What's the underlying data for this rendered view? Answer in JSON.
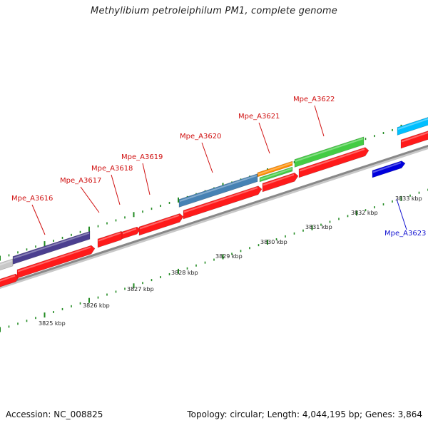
{
  "title": "Methylibium petroleiphilum PM1, complete genome",
  "footer": {
    "accession": "Accession: NC_008825",
    "summary": "Topology: circular; Length: 4,044,195 bp; Genes: 3,864"
  },
  "colors": {
    "background": "#ffffff",
    "backbone": "#888888",
    "cds": "#ff1a1a",
    "label_red": "#d01010",
    "label_blue": "#1010d0",
    "tick": "#228b22",
    "ruler_text": "#222222"
  },
  "ruler": {
    "labels": [
      "3825 kbp",
      "3826 kbp",
      "3827 kbp",
      "3828 kbp",
      "3829 kbp",
      "3830 kbp",
      "3831 kbp",
      "3832 kbp",
      "3833 kbp"
    ]
  },
  "gene_labels": [
    {
      "text": "Mpe_A3616",
      "strand": "forward"
    },
    {
      "text": "Mpe_A3617",
      "strand": "forward"
    },
    {
      "text": "Mpe_A3618",
      "strand": "forward"
    },
    {
      "text": "Mpe_A3619",
      "strand": "forward"
    },
    {
      "text": "Mpe_A3620",
      "strand": "forward"
    },
    {
      "text": "Mpe_A3621",
      "strand": "forward"
    },
    {
      "text": "Mpe_A3622",
      "strand": "forward"
    },
    {
      "text": "Mpe_A3623",
      "strand": "reverse"
    }
  ],
  "feature_tracks": {
    "cog_colors": [
      "#c8c8c8",
      "#4b3f8f",
      "#4682b4",
      "#ff8c00",
      "#44cc44",
      "#00bfff",
      "#0000dd"
    ]
  }
}
